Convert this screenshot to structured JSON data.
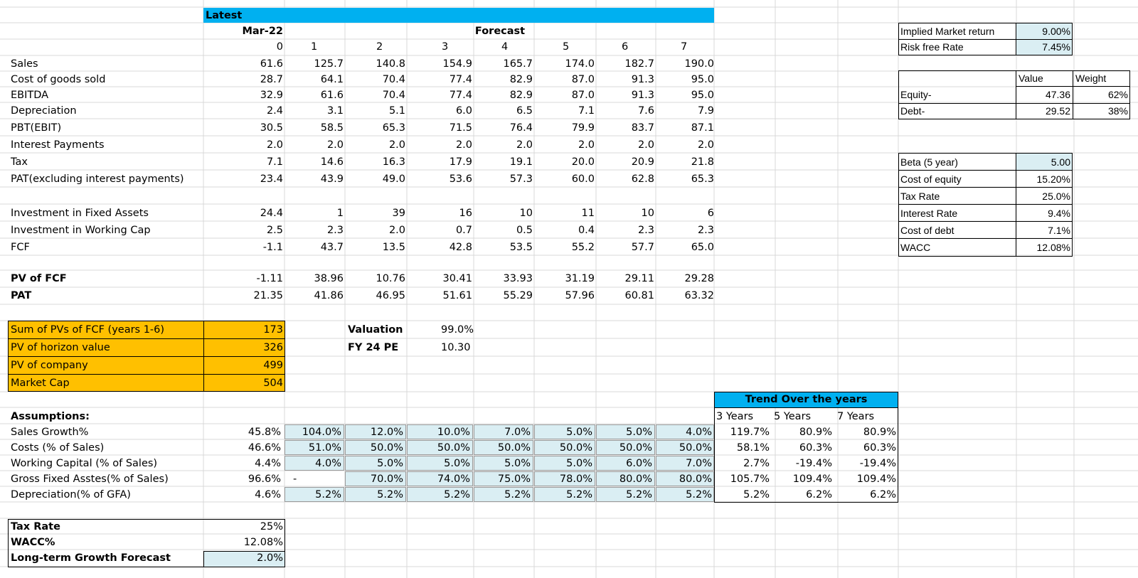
{
  "colors": {
    "header_bar": "#00b0f0",
    "summary_fill": "#ffc000",
    "input_fill": "#daeef3",
    "gridline": "#d9d9d9"
  },
  "header": {
    "latest": "Latest",
    "date": "Mar-22",
    "forecast": "Forecast"
  },
  "periods": [
    "0",
    "1",
    "2",
    "3",
    "4",
    "5",
    "6",
    "7"
  ],
  "rows": [
    {
      "label": "Sales",
      "values": [
        "61.6",
        "125.7",
        "140.8",
        "154.9",
        "165.7",
        "174.0",
        "182.7",
        "190.0"
      ]
    },
    {
      "label": "Cost of goods sold",
      "values": [
        "28.7",
        "64.1",
        "70.4",
        "77.4",
        "82.9",
        "87.0",
        "91.3",
        "95.0"
      ]
    },
    {
      "label": "EBITDA",
      "values": [
        "32.9",
        "61.6",
        "70.4",
        "77.4",
        "82.9",
        "87.0",
        "91.3",
        "95.0"
      ]
    },
    {
      "label": "Depreciation",
      "values": [
        "2.4",
        "3.1",
        "5.1",
        "6.0",
        "6.5",
        "7.1",
        "7.6",
        "7.9"
      ]
    },
    {
      "label": "PBT(EBIT)",
      "values": [
        "30.5",
        "58.5",
        "65.3",
        "71.5",
        "76.4",
        "79.9",
        "83.7",
        "87.1"
      ]
    },
    {
      "label": "Interest Payments",
      "values": [
        "2.0",
        "2.0",
        "2.0",
        "2.0",
        "2.0",
        "2.0",
        "2.0",
        "2.0"
      ]
    },
    {
      "label": "Tax",
      "values": [
        "7.1",
        "14.6",
        "16.3",
        "17.9",
        "19.1",
        "20.0",
        "20.9",
        "21.8"
      ]
    },
    {
      "label": "PAT(excluding interest payments)",
      "values": [
        "23.4",
        "43.9",
        "49.0",
        "53.6",
        "57.3",
        "60.0",
        "62.8",
        "65.3"
      ]
    },
    {
      "label": "Investment in Fixed Assets",
      "values": [
        "24.4",
        "1",
        "39",
        "16",
        "10",
        "11",
        "10",
        "6"
      ]
    },
    {
      "label": "Investment in Working Cap",
      "values": [
        "2.5",
        "2.3",
        "2.0",
        "0.7",
        "0.5",
        "0.4",
        "2.3",
        "2.3"
      ]
    },
    {
      "label": "FCF",
      "values": [
        "-1.1",
        "43.7",
        "13.5",
        "42.8",
        "53.5",
        "55.2",
        "57.7",
        "65.0"
      ]
    },
    {
      "label": "PV of FCF",
      "values": [
        "-1.11",
        "38.96",
        "10.76",
        "30.41",
        "33.93",
        "31.19",
        "29.11",
        "29.28"
      ]
    },
    {
      "label": "PAT",
      "values": [
        "21.35",
        "41.86",
        "46.95",
        "51.61",
        "55.29",
        "57.96",
        "60.81",
        "63.32"
      ]
    }
  ],
  "summary": [
    {
      "label": "Sum of PVs of FCF (years 1-6)",
      "value": "173"
    },
    {
      "label": "PV of horizon value",
      "value": "326"
    },
    {
      "label": "PV of company",
      "value": "499"
    },
    {
      "label": "Market Cap",
      "value": "504"
    }
  ],
  "valuation": {
    "label": "Valuation",
    "value": "99.0%",
    "pe_label": "FY 24 PE",
    "pe_value": "10.30"
  },
  "assumptions": {
    "title": "Assumptions:",
    "rows": [
      {
        "label": "Sales Growth%",
        "values": [
          "45.8%",
          "104.0%",
          "12.0%",
          "10.0%",
          "7.0%",
          "5.0%",
          "5.0%",
          "4.0%"
        ]
      },
      {
        "label": "Costs (% of Sales)",
        "values": [
          "46.6%",
          "51.0%",
          "50.0%",
          "50.0%",
          "50.0%",
          "50.0%",
          "50.0%",
          "50.0%"
        ]
      },
      {
        "label": "Working Capital (% of Sales)",
        "values": [
          "4.4%",
          "4.0%",
          "5.0%",
          "5.0%",
          "5.0%",
          "5.0%",
          "6.0%",
          "7.0%"
        ]
      },
      {
        "label": "Gross Fixed Asstes(% of Sales)",
        "values": [
          "96.6%",
          "-",
          "70.0%",
          "74.0%",
          "75.0%",
          "78.0%",
          "80.0%",
          "80.0%"
        ]
      },
      {
        "label": "Depreciation(% of GFA)",
        "values": [
          "4.6%",
          "5.2%",
          "5.2%",
          "5.2%",
          "5.2%",
          "5.2%",
          "5.2%",
          "5.2%"
        ]
      }
    ]
  },
  "trend": {
    "title": "Trend Over the years",
    "headers": [
      "3 Years",
      "5 Years",
      "7 Years"
    ],
    "rows": [
      [
        "119.7%",
        "80.9%",
        "80.9%"
      ],
      [
        "58.1%",
        "60.3%",
        "60.3%"
      ],
      [
        "2.7%",
        "-19.4%",
        "-19.4%"
      ],
      [
        "105.7%",
        "109.4%",
        "109.4%"
      ],
      [
        "5.2%",
        "6.2%",
        "6.2%"
      ]
    ]
  },
  "bottom": [
    {
      "label": "Tax Rate",
      "value": "25%"
    },
    {
      "label": "WACC%",
      "value": "12.08%"
    },
    {
      "label": "Long-term Growth Forecast",
      "value": "2.0%"
    }
  ],
  "market": [
    {
      "label": "Implied Market return",
      "value": "9.00%"
    },
    {
      "label": "Risk free Rate",
      "value": "7.45%"
    }
  ],
  "capital": {
    "headers": [
      "Value",
      "Weight"
    ],
    "rows": [
      {
        "label": "Equity-",
        "value": "47.36",
        "weight": "62%"
      },
      {
        "label": "Debt-",
        "value": "29.52",
        "weight": "38%"
      }
    ]
  },
  "wacc_inputs": [
    {
      "label": "Beta (5 year)",
      "value": "5.00"
    },
    {
      "label": "Cost of equity",
      "value": "15.20%"
    },
    {
      "label": "Tax Rate",
      "value": "25.0%"
    },
    {
      "label": "Interest Rate",
      "value": "9.4%"
    },
    {
      "label": "Cost of debt",
      "value": "7.1%"
    },
    {
      "label": "WACC",
      "value": "12.08%"
    }
  ]
}
